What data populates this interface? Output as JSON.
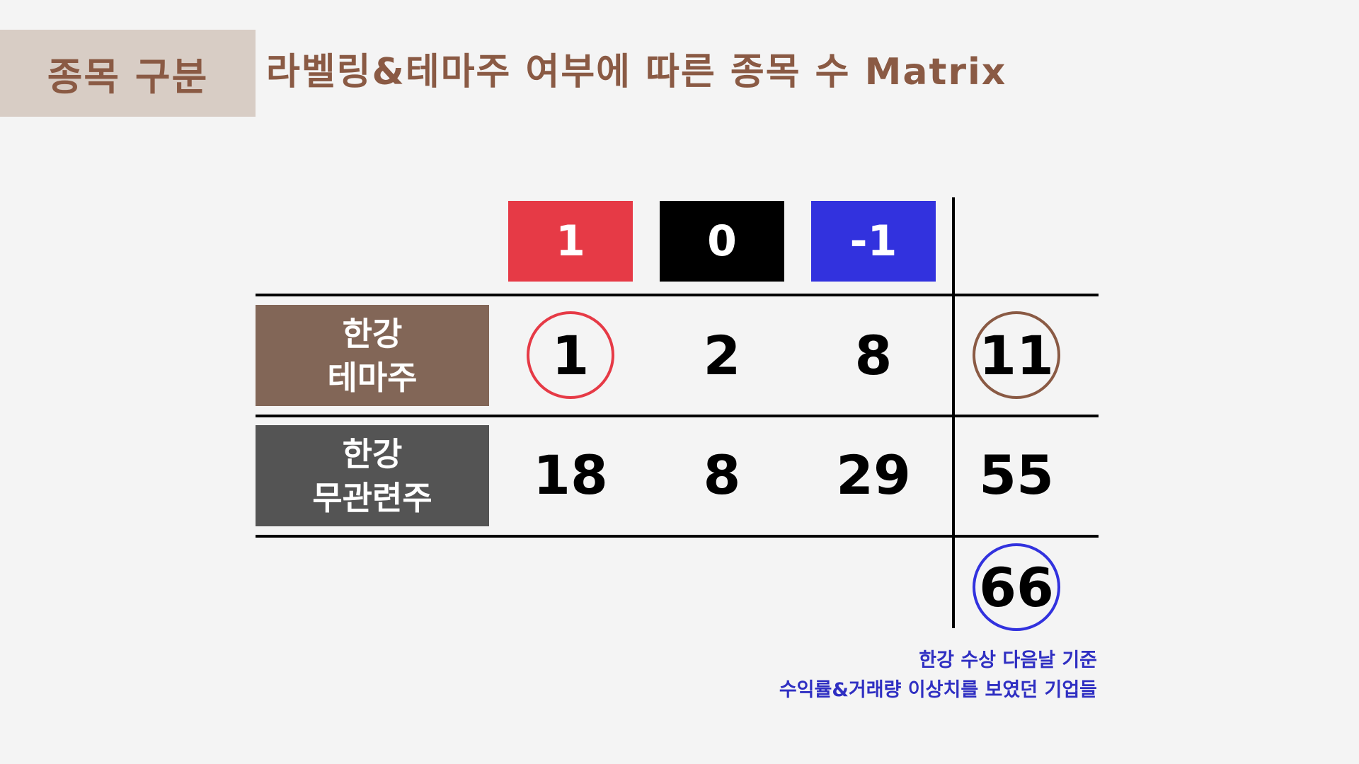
{
  "section_tag": "종목 구분",
  "title": "라벨링&테마주 여부에 따른 종목 수 Matrix",
  "colors": {
    "brown": "#8a5a44",
    "label_brown": "#826657",
    "label_gray": "#545454",
    "red": "#e63a46",
    "black": "#000000",
    "blue": "#3232de"
  },
  "column_headers": [
    "1",
    "0",
    "-1"
  ],
  "rows": [
    {
      "label_line1": "한강",
      "label_line2": "테마주",
      "values": [
        "1",
        "2",
        "8"
      ],
      "total": "11"
    },
    {
      "label_line1": "한강",
      "label_line2": "무관련주",
      "values": [
        "18",
        "8",
        "29"
      ],
      "total": "55"
    }
  ],
  "grand_total": "66",
  "note": {
    "line1": "한강 수상 다음날 기준",
    "line2": "수익률&거래량 이상치를 보였던 기업들"
  }
}
